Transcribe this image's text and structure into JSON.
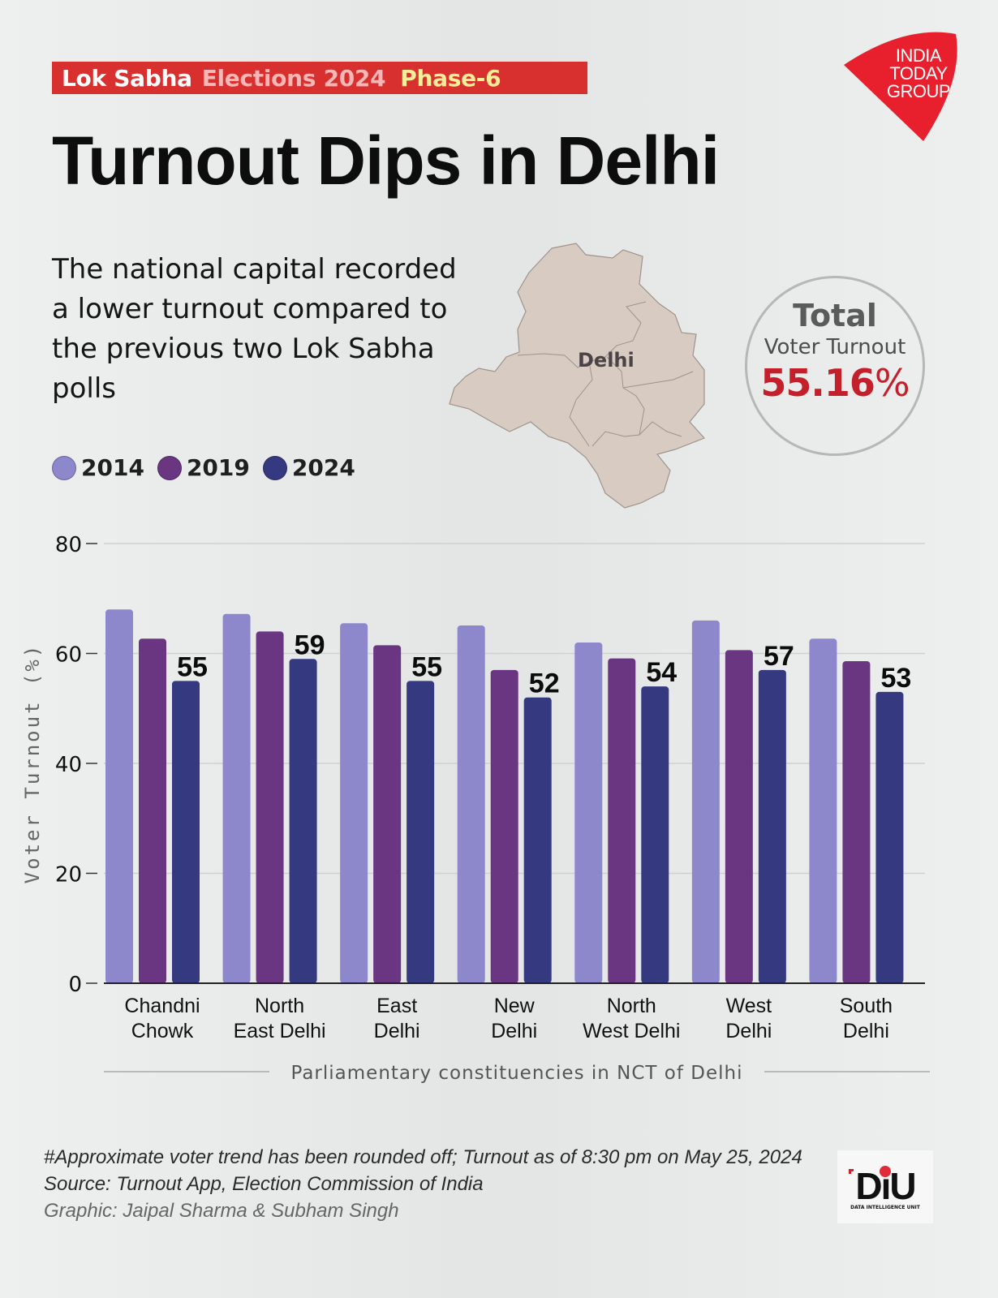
{
  "header": {
    "tag_part1": "Lok Sabha",
    "tag_part2": "Elections 2024",
    "tag_part3": "Phase-6",
    "title": "Turnout Dips in Delhi",
    "subtitle": "The national capital recorded a lower turnout compared to the previous two Lok Sabha polls",
    "brand_logo": [
      "INDIA",
      "TODAY",
      "GROUP"
    ]
  },
  "map": {
    "label": "Delhi"
  },
  "total": {
    "heading": "Total",
    "label": "Voter Turnout",
    "value": "55.16",
    "unit": "%"
  },
  "colors": {
    "accent_red": "#d8302f",
    "series_2014": "#8d88cc",
    "series_2019": "#6a3682",
    "series_2024": "#353a80"
  },
  "chart_data": {
    "type": "bar",
    "title": "",
    "xlabel": "Parliamentary constituencies in NCT of Delhi",
    "ylabel": "Voter Turnout (%)",
    "ylim": [
      0,
      80
    ],
    "yticks": [
      0,
      20,
      40,
      60,
      80
    ],
    "grid": true,
    "legend_position": "top-left",
    "categories": [
      [
        "Chandni",
        "Chowk"
      ],
      [
        "North",
        "East Delhi"
      ],
      [
        "East",
        "Delhi"
      ],
      [
        "New",
        "Delhi"
      ],
      [
        "North",
        "West Delhi"
      ],
      [
        "West",
        "Delhi"
      ],
      [
        "South",
        "Delhi"
      ]
    ],
    "series": [
      {
        "name": "2014",
        "color": "#8d88cc",
        "values": [
          68.0,
          67.2,
          65.5,
          65.1,
          62.0,
          66.0,
          62.7
        ]
      },
      {
        "name": "2019",
        "color": "#6a3682",
        "values": [
          62.7,
          64.0,
          61.5,
          57.0,
          59.1,
          60.6,
          58.6
        ]
      },
      {
        "name": "2024",
        "color": "#353a80",
        "values": [
          55,
          59,
          55,
          52,
          54,
          57,
          53
        ],
        "data_labels": [
          "55",
          "59",
          "55",
          "52",
          "54",
          "57",
          "53"
        ]
      }
    ]
  },
  "footer": {
    "note": "#Approximate voter trend has been rounded off; Turnout as of 8:30 pm on May 25, 2024",
    "source": "Source:  Turnout App, Election Commission of India",
    "credit": "Graphic: Jaipal Sharma & Subham Singh",
    "diu_logo": "DiU",
    "diu_sub": "DATA INTELLIGENCE UNIT"
  }
}
